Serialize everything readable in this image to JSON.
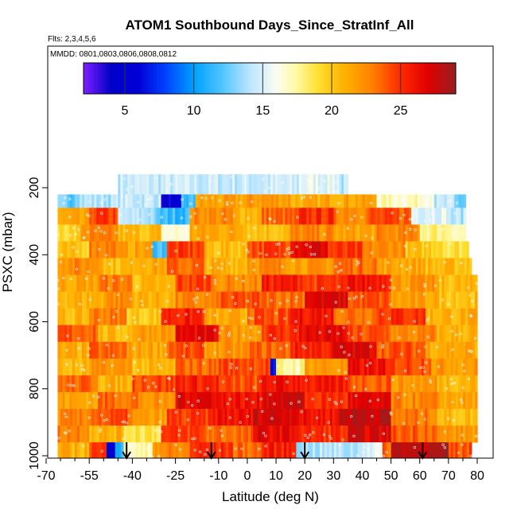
{
  "chart_data": {
    "type": "heatmap",
    "title": "ATOM1 Southbound Days_Since_StratInf_All",
    "note_flights": "Flts: 2,3,4,5,6",
    "note_dates": "MMDD: 0801,0803,0806,0808,0812",
    "xlabel": "Latitude (deg N)",
    "ylabel": "PSXC (mbar)",
    "xlim": [
      -70,
      80
    ],
    "ylim": [
      1000,
      0
    ],
    "x_ticks": [
      -70,
      -55,
      -40,
      -25,
      -10,
      0,
      10,
      20,
      30,
      40,
      50,
      60,
      70,
      80
    ],
    "x_tick_labels": [
      "-70",
      "-55",
      "-40",
      "-25",
      "-10",
      "0",
      "10",
      "20",
      "30",
      "40",
      "50",
      "60",
      "70",
      "80"
    ],
    "x_minor_ticks": [
      -65,
      -60,
      -50,
      -45,
      -35,
      -30,
      -20,
      -15,
      -5,
      5,
      15,
      25,
      35,
      45,
      55,
      65,
      75
    ],
    "y_ticks": [
      200,
      400,
      600,
      800,
      1000
    ],
    "y_tick_labels": [
      "200",
      "400",
      "600",
      "800",
      "1000"
    ],
    "colorbar": {
      "range": [
        2,
        29
      ],
      "ticks": [
        5,
        10,
        15,
        20,
        25
      ],
      "tick_labels": [
        "5",
        "10",
        "15",
        "20",
        "25"
      ],
      "stops": [
        {
          "value": 2,
          "color": "#7f1fff"
        },
        {
          "value": 4,
          "color": "#0000c8"
        },
        {
          "value": 6,
          "color": "#0000d8"
        },
        {
          "value": 8,
          "color": "#0044ff"
        },
        {
          "value": 10,
          "color": "#00a0ff"
        },
        {
          "value": 12,
          "color": "#4cc4ff"
        },
        {
          "value": 14,
          "color": "#b8e4ff"
        },
        {
          "value": 16,
          "color": "#fbfdf2"
        },
        {
          "value": 17.5,
          "color": "#fff8a0"
        },
        {
          "value": 19,
          "color": "#ffe030"
        },
        {
          "value": 21,
          "color": "#ffb000"
        },
        {
          "value": 23,
          "color": "#ff8000"
        },
        {
          "value": 25,
          "color": "#ff2800"
        },
        {
          "value": 27,
          "color": "#e00000"
        },
        {
          "value": 29,
          "color": "#962020"
        }
      ]
    },
    "flight_marker_latitudes": [
      -42,
      -12.5,
      20,
      61
    ],
    "pressure_bins": [
      {
        "top": 160,
        "bottom": 220
      },
      {
        "top": 220,
        "bottom": 260
      },
      {
        "top": 260,
        "bottom": 310
      },
      {
        "top": 310,
        "bottom": 360
      },
      {
        "top": 360,
        "bottom": 410
      },
      {
        "top": 410,
        "bottom": 460
      },
      {
        "top": 460,
        "bottom": 510
      },
      {
        "top": 510,
        "bottom": 560
      },
      {
        "top": 560,
        "bottom": 610
      },
      {
        "top": 610,
        "bottom": 660
      },
      {
        "top": 660,
        "bottom": 710
      },
      {
        "top": 710,
        "bottom": 760
      },
      {
        "top": 760,
        "bottom": 810
      },
      {
        "top": 810,
        "bottom": 860
      },
      {
        "top": 860,
        "bottom": 910
      },
      {
        "top": 910,
        "bottom": 960
      },
      {
        "top": 960,
        "bottom": 1010
      }
    ],
    "rows": [
      {
        "p_top": 160,
        "p_bottom": 220,
        "segments": [
          [
            -45,
            18,
            14.5
          ],
          [
            18,
            32,
            15.5
          ],
          [
            32,
            35,
            14.0
          ]
        ]
      },
      {
        "p_top": 220,
        "p_bottom": 260,
        "segments": [
          [
            -66,
            -60,
            12.5
          ],
          [
            -60,
            -45,
            14.0
          ],
          [
            -45,
            -30,
            14.5
          ],
          [
            -30,
            -23,
            4.5
          ],
          [
            -23,
            -18,
            11.5
          ],
          [
            -18,
            0,
            21.5
          ],
          [
            0,
            15,
            22.0
          ],
          [
            15,
            27,
            21.0
          ],
          [
            27,
            45,
            21.5
          ],
          [
            45,
            65,
            17.0
          ],
          [
            65,
            72,
            14.0
          ],
          [
            72,
            76,
            12.5
          ]
        ]
      },
      {
        "p_top": 260,
        "p_bottom": 310,
        "segments": [
          [
            -66,
            -55,
            21.0
          ],
          [
            -55,
            -45,
            24.5
          ],
          [
            -45,
            -32,
            14.0
          ],
          [
            -32,
            -20,
            11.5
          ],
          [
            -20,
            -5,
            22.5
          ],
          [
            -5,
            5,
            21.0
          ],
          [
            5,
            18,
            23.5
          ],
          [
            18,
            30,
            25.0
          ],
          [
            30,
            42,
            23.0
          ],
          [
            42,
            57,
            24.0
          ],
          [
            57,
            70,
            15.5
          ],
          [
            70,
            76,
            14.0
          ]
        ]
      },
      {
        "p_top": 310,
        "p_bottom": 360,
        "segments": [
          [
            -66,
            -58,
            19.5
          ],
          [
            -58,
            -45,
            22.5
          ],
          [
            -45,
            -30,
            20.5
          ],
          [
            -30,
            -20,
            16.5
          ],
          [
            -20,
            0,
            21.5
          ],
          [
            0,
            15,
            20.5
          ],
          [
            15,
            30,
            22.5
          ],
          [
            30,
            45,
            21.5
          ],
          [
            45,
            60,
            22.5
          ],
          [
            60,
            72,
            18.0
          ],
          [
            72,
            76,
            17.0
          ]
        ]
      },
      {
        "p_top": 360,
        "p_bottom": 410,
        "segments": [
          [
            -66,
            -55,
            20.0
          ],
          [
            -55,
            -45,
            23.0
          ],
          [
            -45,
            -33,
            21.5
          ],
          [
            -33,
            -28,
            12.0
          ],
          [
            -28,
            -15,
            24.5
          ],
          [
            -15,
            0,
            20.5
          ],
          [
            0,
            15,
            24.5
          ],
          [
            15,
            28,
            27.0
          ],
          [
            28,
            40,
            24.5
          ],
          [
            40,
            55,
            22.5
          ],
          [
            55,
            68,
            20.0
          ],
          [
            68,
            77,
            19.0
          ]
        ]
      },
      {
        "p_top": 410,
        "p_bottom": 460,
        "segments": [
          [
            -66,
            -50,
            22.5
          ],
          [
            -50,
            -40,
            20.5
          ],
          [
            -40,
            -28,
            21.5
          ],
          [
            -28,
            -15,
            23.5
          ],
          [
            -15,
            0,
            21.0
          ],
          [
            0,
            15,
            22.5
          ],
          [
            15,
            30,
            22.0
          ],
          [
            30,
            45,
            23.5
          ],
          [
            45,
            62,
            21.5
          ],
          [
            62,
            78,
            20.5
          ]
        ]
      },
      {
        "p_top": 460,
        "p_bottom": 510,
        "segments": [
          [
            -66,
            -52,
            21.5
          ],
          [
            -52,
            -40,
            23.0
          ],
          [
            -40,
            -25,
            20.5
          ],
          [
            -25,
            -12,
            24.5
          ],
          [
            -12,
            5,
            22.5
          ],
          [
            5,
            20,
            25.5
          ],
          [
            20,
            35,
            24.5
          ],
          [
            35,
            50,
            26.0
          ],
          [
            50,
            66,
            22.0
          ],
          [
            66,
            80,
            20.5
          ]
        ]
      },
      {
        "p_top": 510,
        "p_bottom": 560,
        "segments": [
          [
            -66,
            -50,
            21.0
          ],
          [
            -50,
            -40,
            22.5
          ],
          [
            -40,
            -25,
            21.0
          ],
          [
            -25,
            -10,
            22.5
          ],
          [
            -10,
            5,
            24.0
          ],
          [
            5,
            20,
            23.5
          ],
          [
            20,
            35,
            27.0
          ],
          [
            35,
            50,
            24.0
          ],
          [
            50,
            66,
            21.5
          ],
          [
            66,
            80,
            20.5
          ]
        ]
      },
      {
        "p_top": 560,
        "p_bottom": 610,
        "segments": [
          [
            -66,
            -55,
            20.5
          ],
          [
            -55,
            -42,
            23.0
          ],
          [
            -42,
            -30,
            20.0
          ],
          [
            -30,
            -15,
            25.5
          ],
          [
            -15,
            0,
            21.0
          ],
          [
            0,
            15,
            24.0
          ],
          [
            15,
            30,
            26.0
          ],
          [
            30,
            45,
            23.5
          ],
          [
            45,
            62,
            25.0
          ],
          [
            62,
            80,
            21.0
          ]
        ]
      },
      {
        "p_top": 610,
        "p_bottom": 660,
        "segments": [
          [
            -66,
            -52,
            24.0
          ],
          [
            -52,
            -40,
            20.5
          ],
          [
            -40,
            -25,
            22.0
          ],
          [
            -25,
            -10,
            26.5
          ],
          [
            -10,
            5,
            22.0
          ],
          [
            5,
            18,
            25.0
          ],
          [
            18,
            35,
            26.5
          ],
          [
            35,
            50,
            24.0
          ],
          [
            50,
            66,
            22.5
          ],
          [
            66,
            80,
            21.0
          ]
        ]
      },
      {
        "p_top": 660,
        "p_bottom": 710,
        "segments": [
          [
            -66,
            -55,
            21.0
          ],
          [
            -55,
            -42,
            23.5
          ],
          [
            -42,
            -28,
            21.5
          ],
          [
            -28,
            -15,
            24.0
          ],
          [
            -15,
            0,
            22.0
          ],
          [
            0,
            15,
            23.5
          ],
          [
            15,
            30,
            25.5
          ],
          [
            30,
            45,
            27.0
          ],
          [
            45,
            62,
            24.0
          ],
          [
            62,
            80,
            21.5
          ]
        ]
      },
      {
        "p_top": 710,
        "p_bottom": 760,
        "segments": [
          [
            -66,
            -55,
            20.5
          ],
          [
            -55,
            -40,
            22.0
          ],
          [
            -40,
            -25,
            20.5
          ],
          [
            -25,
            -10,
            23.5
          ],
          [
            -10,
            8,
            24.5
          ],
          [
            8,
            10,
            6.0
          ],
          [
            10,
            20,
            17.5
          ],
          [
            20,
            35,
            22.0
          ],
          [
            35,
            48,
            26.0
          ],
          [
            48,
            64,
            24.5
          ],
          [
            64,
            80,
            22.0
          ]
        ]
      },
      {
        "p_top": 760,
        "p_bottom": 810,
        "segments": [
          [
            -66,
            -52,
            23.5
          ],
          [
            -52,
            -40,
            21.0
          ],
          [
            -40,
            -25,
            24.5
          ],
          [
            -25,
            -10,
            25.5
          ],
          [
            -10,
            5,
            24.0
          ],
          [
            5,
            20,
            26.0
          ],
          [
            20,
            35,
            25.5
          ],
          [
            35,
            50,
            24.0
          ],
          [
            50,
            66,
            22.0
          ],
          [
            66,
            80,
            21.0
          ]
        ]
      },
      {
        "p_top": 810,
        "p_bottom": 860,
        "segments": [
          [
            -66,
            -52,
            21.5
          ],
          [
            -52,
            -38,
            23.5
          ],
          [
            -38,
            -25,
            22.0
          ],
          [
            -25,
            -10,
            27.0
          ],
          [
            -10,
            5,
            26.0
          ],
          [
            5,
            20,
            27.5
          ],
          [
            20,
            35,
            25.0
          ],
          [
            35,
            50,
            26.5
          ],
          [
            50,
            66,
            22.5
          ],
          [
            66,
            80,
            21.5
          ]
        ]
      },
      {
        "p_top": 860,
        "p_bottom": 910,
        "segments": [
          [
            -66,
            -55,
            22.5
          ],
          [
            -55,
            -40,
            24.0
          ],
          [
            -40,
            -28,
            21.5
          ],
          [
            -28,
            -12,
            24.5
          ],
          [
            -12,
            2,
            26.0
          ],
          [
            2,
            18,
            27.5
          ],
          [
            18,
            32,
            26.0
          ],
          [
            32,
            50,
            28.0
          ],
          [
            50,
            66,
            23.0
          ],
          [
            66,
            80,
            20.5
          ]
        ]
      },
      {
        "p_top": 910,
        "p_bottom": 960,
        "segments": [
          [
            -66,
            -55,
            23.0
          ],
          [
            -55,
            -43,
            21.0
          ],
          [
            -43,
            -30,
            19.0
          ],
          [
            -30,
            -15,
            24.5
          ],
          [
            -15,
            2,
            23.5
          ],
          [
            2,
            18,
            26.5
          ],
          [
            18,
            35,
            25.0
          ],
          [
            35,
            50,
            27.0
          ],
          [
            50,
            66,
            24.0
          ],
          [
            66,
            80,
            22.0
          ]
        ]
      },
      {
        "p_top": 960,
        "p_bottom": 1010,
        "segments": [
          [
            -66,
            -55,
            21.0
          ],
          [
            -55,
            -49,
            24.5
          ],
          [
            -49,
            -46,
            6.0
          ],
          [
            -46,
            -43,
            11.0
          ],
          [
            -43,
            -33,
            17.0
          ],
          [
            -33,
            -20,
            22.5
          ],
          [
            -20,
            -5,
            25.0
          ],
          [
            -5,
            5,
            23.5
          ],
          [
            5,
            17,
            25.5
          ],
          [
            17,
            40,
            14.0
          ],
          [
            40,
            47,
            15.5
          ],
          [
            47,
            50,
            23.5
          ],
          [
            50,
            70,
            28.0
          ],
          [
            70,
            78,
            24.0
          ]
        ]
      }
    ]
  }
}
